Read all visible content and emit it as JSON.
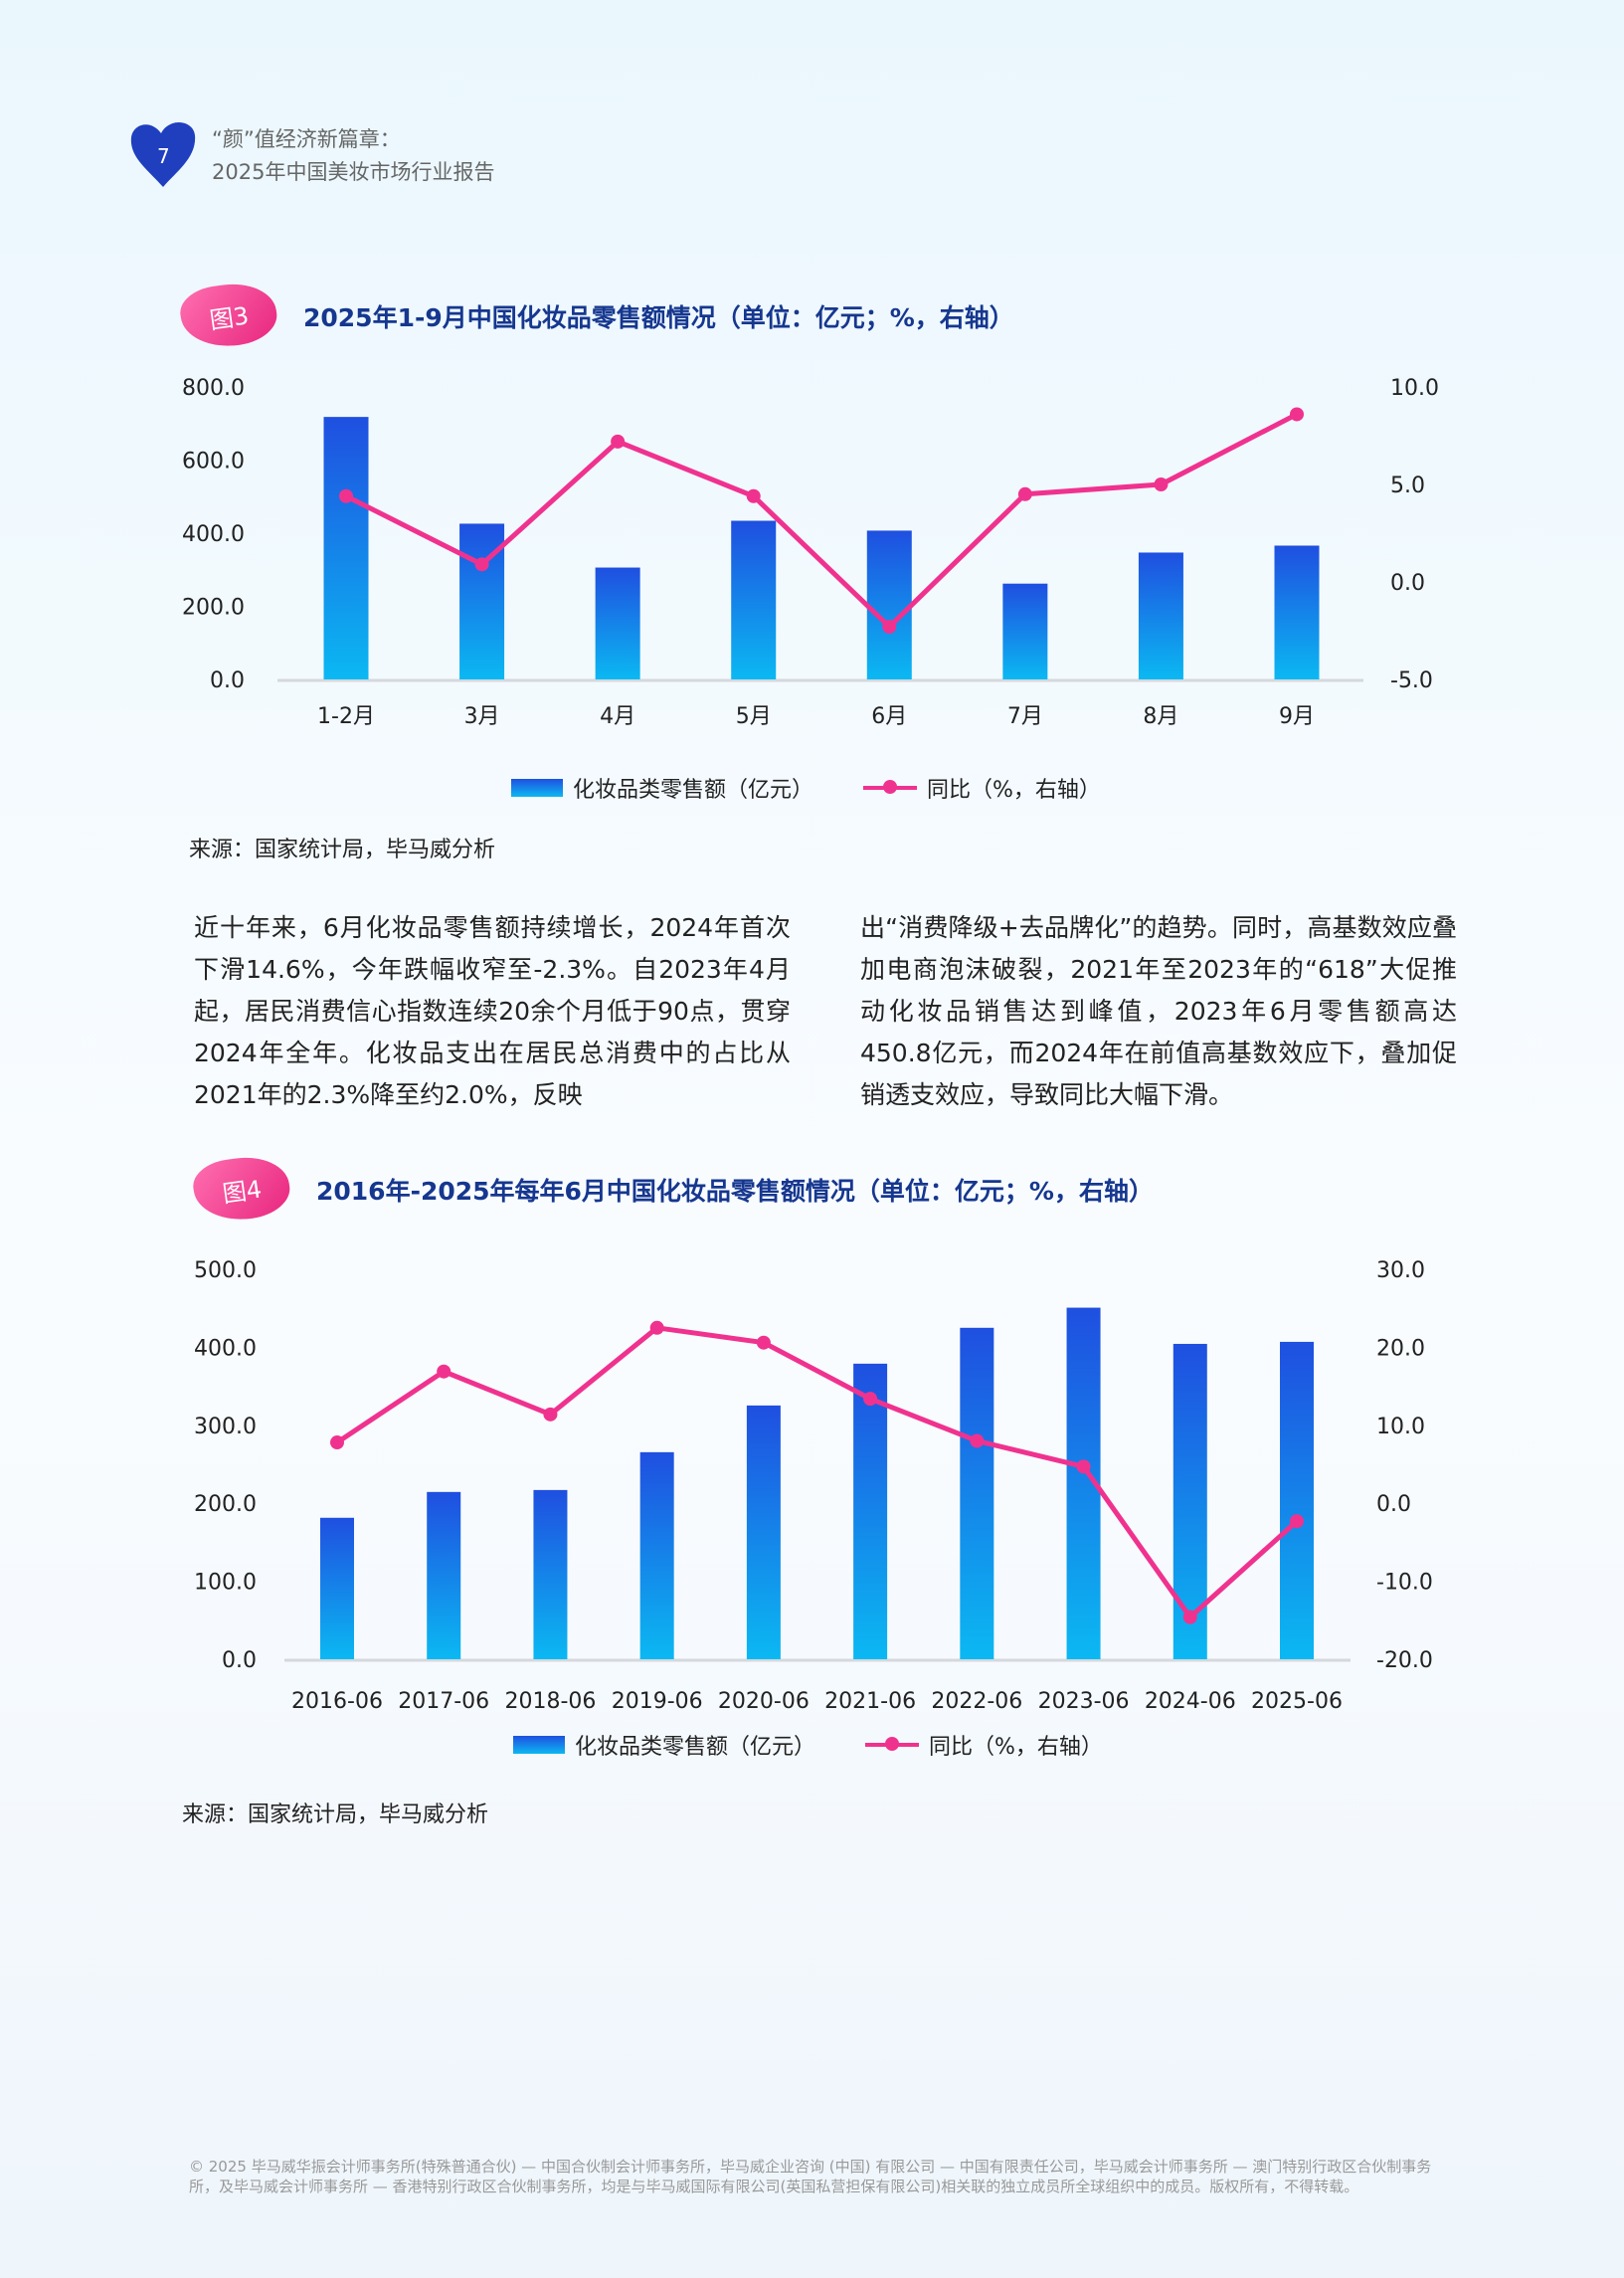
{
  "header": {
    "page_number": "7",
    "title_line1": "“颜”值经济新篇章：",
    "title_line2": "2025年中国美妆市场行业报告"
  },
  "figure3": {
    "badge": "图3",
    "title": "2025年1-9月中国化妆品零售额情况（单位：亿元；%，右轴）",
    "source": "来源：国家统计局，毕马威分析"
  },
  "figure4": {
    "badge": "图4",
    "title": "2016年-2025年每年6月中国化妆品零售额情况（单位：亿元；%，右轴）",
    "source": "来源：国家统计局，毕马威分析"
  },
  "body": {
    "left": "近十年来，6月化妆品零售额持续增长，2024年首次下滑14.6%，今年跌幅收窄至-2.3%。自2023年4月起，居民消费信心指数连续20余个月低于90点，贯穿2024年全年。化妆品支出在居民总消费中的占比从2021年的2.3%降至约2.0%，反映",
    "right": "出“消费降级+去品牌化”的趋势。同时，高基数效应叠加电商泡沫破裂，2021年至2023年的“618”大促推动化妆品销售达到峰值，2023年6月零售额高达450.8亿元，而2024年在前值高基数效应下，叠加促销透支效应，导致同比大幅下滑。"
  },
  "footer": "© 2025 毕马威华振会计师事务所(特殊普通合伙) — 中国合伙制会计师事务所，毕马威企业咨询 (中国) 有限公司 — 中国有限责任公司，毕马威会计师事务所 — 澳门特别行政区合伙制事务所，及毕马威会计师事务所 — 香港特别行政区合伙制事务所，均是与毕马威国际有限公司(英国私营担保有限公司)相关联的独立成员所全球组织中的成员。版权所有，不得转载。",
  "colors": {
    "bar_top": "#1f4fe0",
    "bar_bottom": "#0bb8f2",
    "line": "#f0328f",
    "title": "#16378f"
  },
  "chart_data": [
    {
      "type": "bar",
      "title": "2025年1-9月中国化妆品零售额情况（单位：亿元；%，右轴）",
      "categories": [
        "1-2月",
        "3月",
        "4月",
        "5月",
        "6月",
        "7月",
        "8月",
        "9月"
      ],
      "series": [
        {
          "name": "化妆品类零售额（亿元）",
          "type": "bar",
          "axis": "left",
          "values": [
            718,
            426,
            306,
            434,
            407,
            262,
            347,
            366
          ]
        },
        {
          "name": "同比（%，右轴）",
          "type": "line",
          "axis": "right",
          "values": [
            4.4,
            0.9,
            7.2,
            4.4,
            -2.3,
            4.5,
            5.0,
            8.6
          ]
        }
      ],
      "ylim": [
        0,
        800
      ],
      "yticks": [
        "0.0",
        "200.0",
        "400.0",
        "600.0",
        "800.0"
      ],
      "y2lim": [
        -5,
        10
      ],
      "y2ticks": [
        "-5.0",
        "0.0",
        "5.0",
        "10.0"
      ],
      "legend": "bottom",
      "grid": false
    },
    {
      "type": "bar",
      "title": "2016年-2025年每年6月中国化妆品零售额情况（单位：亿元；%，右轴）",
      "categories": [
        "2016-06",
        "2017-06",
        "2018-06",
        "2019-06",
        "2020-06",
        "2021-06",
        "2022-06",
        "2023-06",
        "2024-06",
        "2025-06"
      ],
      "series": [
        {
          "name": "化妆品类零售额（亿元）",
          "type": "bar",
          "axis": "left",
          "values": [
            181.4,
            214.5,
            217.0,
            265.5,
            325.4,
            379.0,
            425.0,
            450.8,
            404.4,
            407.0
          ]
        },
        {
          "name": "同比（%，右轴）",
          "type": "line",
          "axis": "right",
          "values": [
            7.8,
            16.9,
            11.4,
            22.5,
            20.6,
            13.4,
            8.0,
            4.7,
            -14.6,
            -2.3
          ]
        }
      ],
      "ylim": [
        0,
        500
      ],
      "yticks": [
        "0.0",
        "100.0",
        "200.0",
        "300.0",
        "400.0",
        "500.0"
      ],
      "y2lim": [
        -20,
        30
      ],
      "y2ticks": [
        "-20.0",
        "-10.0",
        "0.0",
        "10.0",
        "20.0",
        "30.0"
      ],
      "legend": "bottom",
      "grid": false
    }
  ]
}
